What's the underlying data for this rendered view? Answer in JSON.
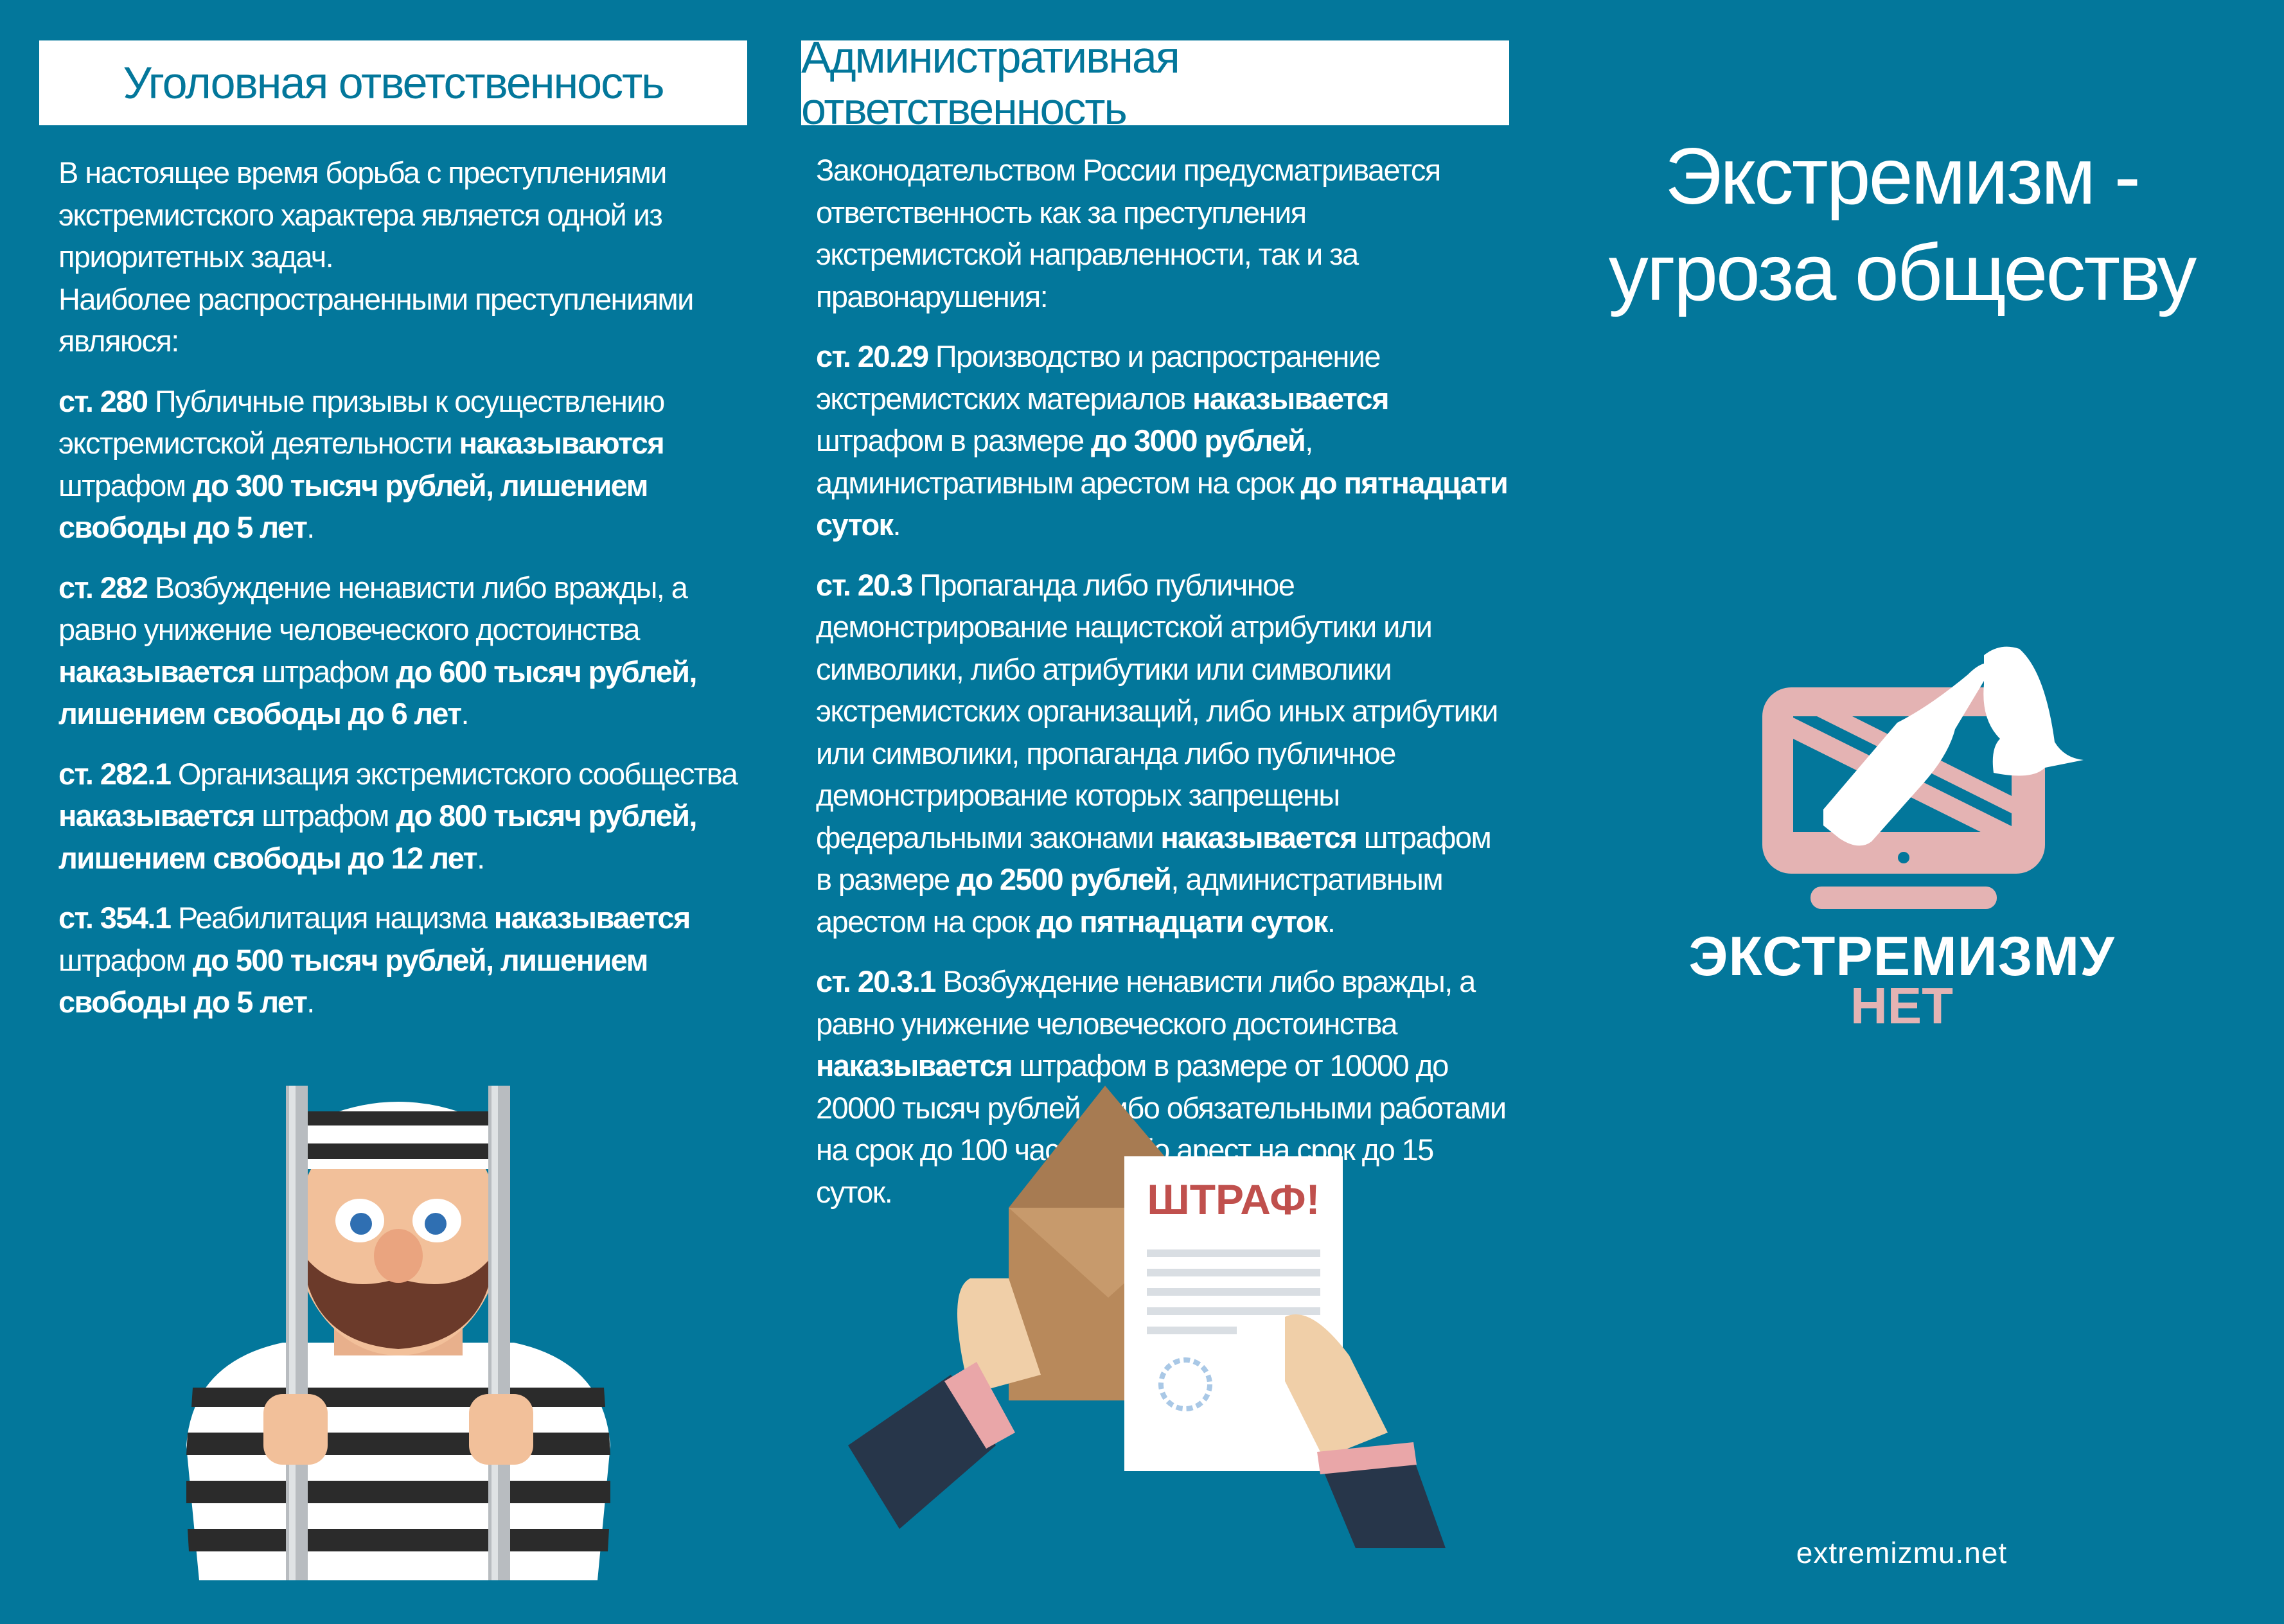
{
  "colors": {
    "background": "#03779b",
    "header_bg": "#ffffff",
    "accent_pink": "#e4b3b3",
    "fine_red": "#c0504d"
  },
  "left": {
    "heading": "Уголовная ответственность",
    "paragraphs": [
      [
        {
          "t": "В настоящее время борьба с преступлениями экстремистского характера является одной из приоритетных задач."
        },
        {
          "br": true
        },
        {
          "t": "Наиболее распространенными преступлениями являюся:"
        }
      ],
      [
        {
          "t": "ст. 280",
          "b": true
        },
        {
          "t": " Публичные призывы к осуществлению экстремистской деятельности "
        },
        {
          "t": "наказываются",
          "b": true
        },
        {
          "t": " штрафом "
        },
        {
          "t": "до 300 тысяч рублей, лишением свободы до 5 лет",
          "b": true
        },
        {
          "t": "."
        }
      ],
      [
        {
          "t": "ст. 282",
          "b": true
        },
        {
          "t": " Возбуждение ненависти либо вражды, а равно унижение человеческого достоинства "
        },
        {
          "t": "наказывается",
          "b": true
        },
        {
          "t": " штрафом "
        },
        {
          "t": "до 600 тысяч рублей, лишением свободы до 6 лет",
          "b": true
        },
        {
          "t": "."
        }
      ],
      [
        {
          "t": "ст. 282.1",
          "b": true
        },
        {
          "t": " Организация экстремистского сообщества "
        },
        {
          "t": "наказывается",
          "b": true
        },
        {
          "t": " штрафом "
        },
        {
          "t": "до 800 тысяч рублей, лишением свободы до 12 лет",
          "b": true
        },
        {
          "t": "."
        }
      ],
      [
        {
          "t": "ст. 354.1",
          "b": true
        },
        {
          "t": " Реабилитация нацизма "
        },
        {
          "t": "наказывается",
          "b": true
        },
        {
          "t": " штрафом "
        },
        {
          "t": "до 500 тысяч рублей, лишением свободы до 5 лет",
          "b": true
        },
        {
          "t": "."
        }
      ]
    ]
  },
  "middle": {
    "heading": "Административная ответственность",
    "paragraphs": [
      [
        {
          "t": "Законодательством России предусматривается ответственность как за преступления экстремистской направленности, так и за правонарушения:"
        }
      ],
      [
        {
          "t": "ст. 20.29",
          "b": true
        },
        {
          "t": " Производство и распространение экстремистских материалов "
        },
        {
          "t": "наказывается",
          "b": true
        },
        {
          "t": " штрафом в размере "
        },
        {
          "t": "до 3000 рублей",
          "b": true
        },
        {
          "t": ", административным арестом на срок "
        },
        {
          "t": "до пятнадцати суток",
          "b": true
        },
        {
          "t": "."
        }
      ],
      [
        {
          "t": "ст. 20.3",
          "b": true
        },
        {
          "t": " Пропаганда либо публичное демонстрирование нацистской атрибутики или символики, либо атрибутики или символики экстремистских организаций, либо иных атрибутики или символики, пропаганда либо публичное демонстрирование которых запрещены федеральными законами "
        },
        {
          "t": "наказывается",
          "b": true
        },
        {
          "t": " штрафом в размере "
        },
        {
          "t": "до 2500 рублей",
          "b": true
        },
        {
          "t": ", административным арестом на срок "
        },
        {
          "t": "до пятнадцати суток",
          "b": true
        },
        {
          "t": "."
        }
      ],
      [
        {
          "t": "ст. 20.3.1",
          "b": true
        },
        {
          "t": " Возбуждение ненависти либо вражды, а равно унижение человеческого достоинства "
        },
        {
          "t": "наказывается",
          "b": true
        },
        {
          "t": " штрафом в размере от 10000 до 20000 тысяч рублей, либо обязательными работами на срок до 100 часов, либо арест на срок до 15 суток."
        }
      ]
    ],
    "fine_label": "ШТРАФ!"
  },
  "right": {
    "title_line1": "Экстремизм -",
    "title_line2": "угроза обществу",
    "logo_line1": "ЭКСТРЕМИЗМУ",
    "logo_line2": "НЕТ",
    "website": "extremizmu.net"
  }
}
